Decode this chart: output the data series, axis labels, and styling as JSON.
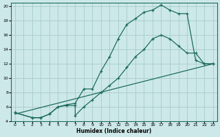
{
  "xlabel": "Humidex (Indice chaleur)",
  "background_color": "#cde8e8",
  "grid_color": "#aacfcf",
  "line_color": "#1a6b5a",
  "xlim": [
    -0.5,
    23.5
  ],
  "ylim": [
    4,
    20.5
  ],
  "xticks": [
    0,
    1,
    2,
    3,
    4,
    5,
    6,
    7,
    8,
    9,
    10,
    11,
    12,
    13,
    14,
    15,
    16,
    17,
    18,
    19,
    20,
    21,
    22,
    23
  ],
  "yticks": [
    4,
    6,
    8,
    10,
    12,
    14,
    16,
    18,
    20
  ],
  "line1_x": [
    0,
    2,
    3,
    4,
    5,
    6,
    7,
    8,
    9,
    10,
    11,
    12,
    13,
    14,
    15,
    16,
    17,
    18,
    19,
    20,
    21,
    22,
    23
  ],
  "line1_y": [
    5.2,
    4.5,
    4.5,
    5.0,
    6.0,
    6.3,
    6.5,
    8.5,
    8.5,
    11.0,
    13.0,
    15.5,
    17.5,
    18.3,
    19.2,
    19.5,
    20.2,
    19.5,
    19.0,
    19.0,
    12.5,
    12.0,
    12.0
  ],
  "line2_x": [
    0,
    2,
    3,
    4,
    5,
    6,
    7,
    7,
    8,
    9,
    10,
    11,
    12,
    13,
    14,
    15,
    16,
    17,
    18,
    19,
    20,
    21,
    22,
    23
  ],
  "line2_y": [
    5.2,
    4.5,
    4.5,
    5.0,
    6.0,
    6.2,
    6.2,
    4.8,
    6.0,
    7.0,
    8.0,
    9.0,
    10.0,
    11.5,
    13.0,
    14.0,
    15.5,
    16.0,
    15.5,
    14.5,
    13.5,
    13.5,
    12.0,
    12.0
  ],
  "line3_x": [
    0,
    23
  ],
  "line3_y": [
    5.0,
    12.0
  ]
}
